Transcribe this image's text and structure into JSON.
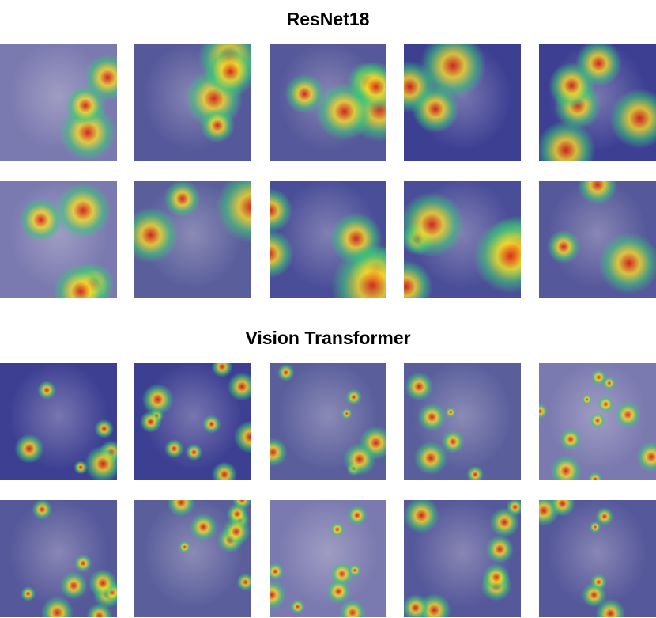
{
  "sections": [
    {
      "title": "ResNet18"
    },
    {
      "title": "Vision Transformer"
    }
  ]
}
